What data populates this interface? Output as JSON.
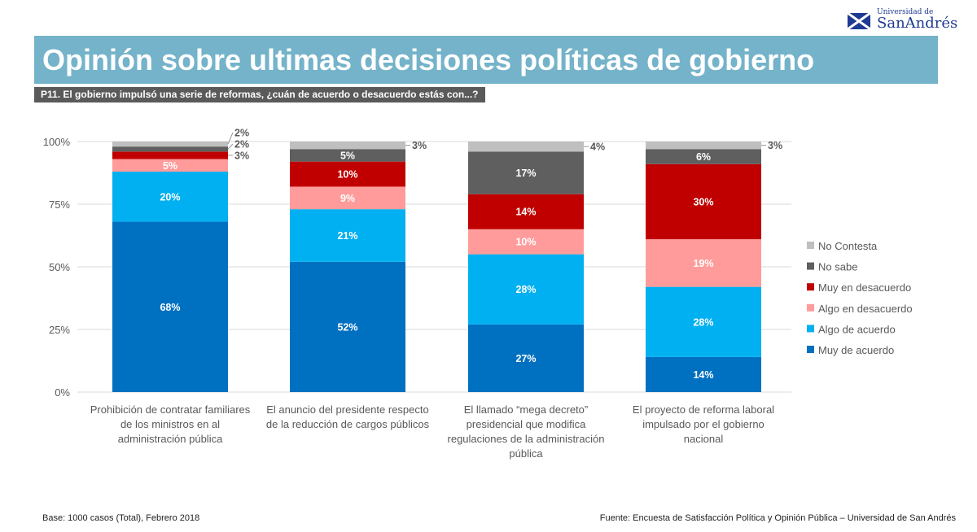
{
  "header": {
    "title": "Opinión sobre ultimas decisiones políticas de gobierno",
    "question": "P11. El gobierno impulsó una serie de reformas, ¿cuán de acuerdo o desacuerdo estás con...?",
    "logo_text_small": "Universidad de",
    "logo_text_big": "SanAndrés"
  },
  "footer": {
    "base": "Base: 1000 casos (Total), Febrero 2018",
    "source": "Fuente: Encuesta de Satisfacción Política y Opinión Pública – Universidad de San Andrés"
  },
  "chart_data": {
    "type": "bar",
    "stacked": true,
    "percent": true,
    "categories": [
      [
        "Prohibición de contratar familiares",
        "de los ministros en al",
        "administración pública"
      ],
      [
        "El anuncio del presidente respecto",
        "de la reducción de cargos públicos"
      ],
      [
        "El llamado “mega decreto”",
        "presidencial que modifica",
        "regulaciones de la administración",
        "pública"
      ],
      [
        "El proyecto de reforma laboral",
        "impulsado por el gobierno",
        "nacional"
      ]
    ],
    "yticks": [
      "0%",
      "25%",
      "50%",
      "75%",
      "100%"
    ],
    "ylim": [
      0,
      100
    ],
    "grid": true,
    "legend_position": "right",
    "series": [
      {
        "name": "Muy de acuerdo",
        "color": "#0070C0",
        "values": [
          68,
          52,
          27,
          14
        ]
      },
      {
        "name": "Algo de acuerdo",
        "color": "#00B0F0",
        "values": [
          20,
          21,
          28,
          28
        ]
      },
      {
        "name": "Algo en desacuerdo",
        "color": "#FF9B9B",
        "values": [
          5,
          9,
          10,
          19
        ]
      },
      {
        "name": "Muy en desacuerdo",
        "color": "#C00000",
        "values": [
          3,
          10,
          14,
          30
        ]
      },
      {
        "name": "No sabe",
        "color": "#5F5F5F",
        "values": [
          2,
          5,
          17,
          6
        ]
      },
      {
        "name": "No Contesta",
        "color": "#BFBFBF",
        "values": [
          2,
          3,
          4,
          3
        ]
      }
    ]
  }
}
